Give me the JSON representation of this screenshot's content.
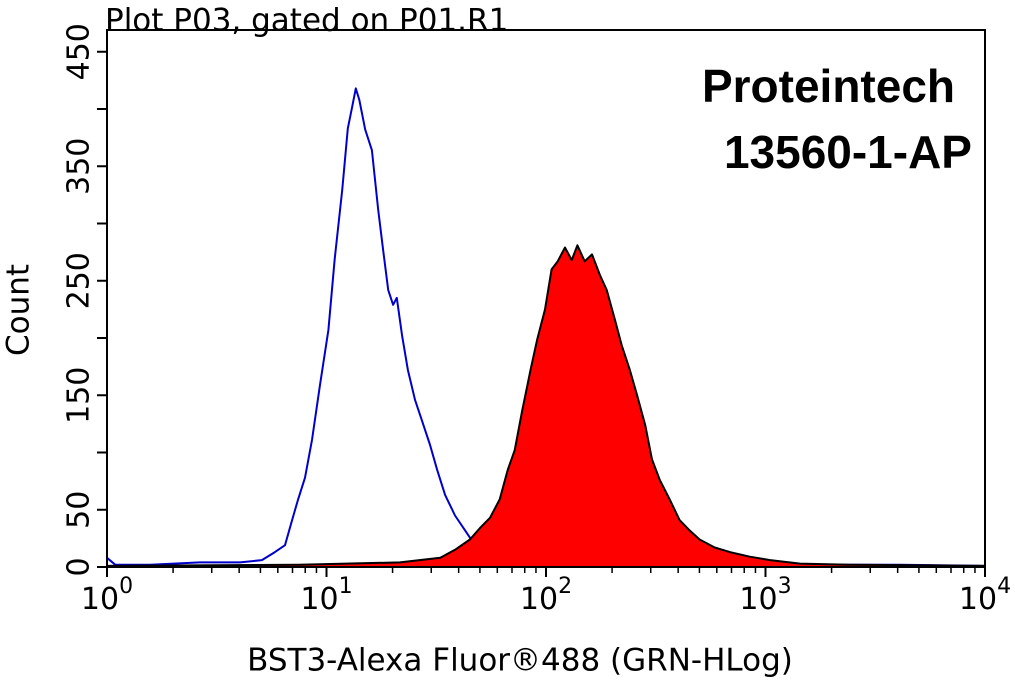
{
  "chart_data": {
    "type": "histogram-overlay",
    "title": "Plot P03, gated on P01.R1",
    "x_label": "BST3-Alexa Fluor®488 (GRN-HLog)",
    "y_label": "Count",
    "annotations": [
      "Proteintech",
      "13560-1-AP"
    ],
    "x_scale": "log",
    "xlim": [
      1,
      10000
    ],
    "xticks": [
      {
        "value": 1,
        "label": "10",
        "exponent": "0"
      },
      {
        "value": 10,
        "label": "10",
        "exponent": "1"
      },
      {
        "value": 100,
        "label": "10",
        "exponent": "2"
      },
      {
        "value": 1000,
        "label": "10",
        "exponent": "3"
      },
      {
        "value": 10000,
        "label": "10",
        "exponent": "4"
      }
    ],
    "ylim": [
      0,
      469
    ],
    "yticks": [
      0,
      50,
      150,
      250,
      350,
      450
    ],
    "yminorticks": [
      100,
      200,
      300,
      400
    ],
    "series": [
      {
        "color": "#0000cc",
        "filled": false,
        "x": [
          1.0,
          1.09,
          1.57,
          2.65,
          4.04,
          5.08,
          5.82,
          6.47,
          6.97,
          7.42,
          7.98,
          8.59,
          9.34,
          10.2,
          10.9,
          11.8,
          12.5,
          13.1,
          13.6,
          14.1,
          15.0,
          16.1,
          17.2,
          18.1,
          19.1,
          20.1,
          20.9,
          22.1,
          23.5,
          25.3,
          27.2,
          29.6,
          31.9,
          34.7,
          38.5,
          42.8,
          47.5,
          55.6,
          68.6,
          84.6,
          176,
          504,
          1436,
          4100,
          10000
        ],
        "values": [
          8,
          2,
          2,
          4,
          4,
          6,
          13,
          19,
          41,
          59,
          78,
          111,
          159,
          207,
          269,
          330,
          383,
          402,
          418,
          408,
          382,
          364,
          312,
          277,
          242,
          229,
          235,
          202,
          172,
          146,
          128,
          107,
          85,
          63,
          45,
          32,
          19,
          12,
          6,
          3,
          2,
          2,
          2,
          2,
          1
        ]
      },
      {
        "color": "#ff0000",
        "outline": "#000000",
        "filled": true,
        "x": [
          1.0,
          7.5,
          21.6,
          33,
          38.5,
          45,
          50,
          55.6,
          61.5,
          67,
          72,
          78,
          85,
          91,
          99,
          106,
          113,
          122,
          131,
          139,
          150,
          162,
          176,
          189,
          206,
          221,
          241,
          260,
          283,
          304,
          330,
          366,
          406,
          451,
          501,
          587,
          688,
          848,
          1050,
          1436,
          2420,
          10000
        ],
        "values": [
          1,
          2,
          4,
          8,
          15,
          24,
          34,
          43,
          59,
          85,
          102,
          137,
          172,
          198,
          225,
          260,
          267,
          279,
          268,
          281,
          267,
          273,
          255,
          242,
          216,
          194,
          172,
          150,
          124,
          94,
          76,
          59,
          41,
          32,
          24,
          17,
          13,
          9,
          6,
          3,
          2,
          1
        ]
      }
    ]
  }
}
